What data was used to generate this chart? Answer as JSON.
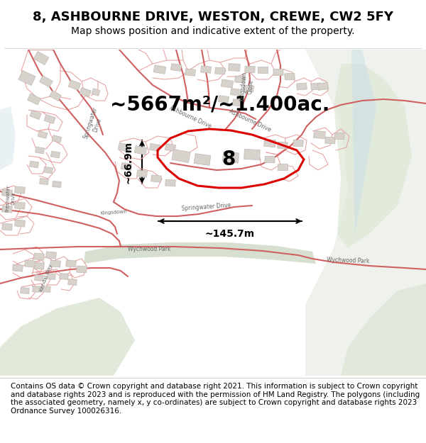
{
  "title": "8, ASHBOURNE DRIVE, WESTON, CREWE, CW2 5FY",
  "subtitle": "Map shows position and indicative extent of the property.",
  "footnote": "Contains OS data © Crown copyright and database right 2021. This information is subject to Crown copyright and database rights 2023 and is reproduced with the permission of HM Land Registry. The polygons (including the associated geometry, namely x, y co-ordinates) are subject to Crown copyright and database rights 2023 Ordnance Survey 100026316.",
  "area_label": "~5667m²/~1.400ac.",
  "width_label": "~145.7m",
  "height_label": "~66.9m",
  "plot_number": "8",
  "bg_color": "#f2ede8",
  "road_color": "#e8a0a0",
  "road_color_dark": "#d06060",
  "highlight_color": "#dd0000",
  "green_strip": "#cdd8c5",
  "green_park": "#d5e0cc",
  "blue_water": "#c8dde8",
  "plot_outline": "#e08080",
  "building_fill": "#d8d2cc",
  "building_edge": "#c0b8b4",
  "title_fontsize": 13,
  "subtitle_fontsize": 10,
  "footnote_fontsize": 7.5,
  "area_fontsize": 20,
  "label_fontsize": 11
}
